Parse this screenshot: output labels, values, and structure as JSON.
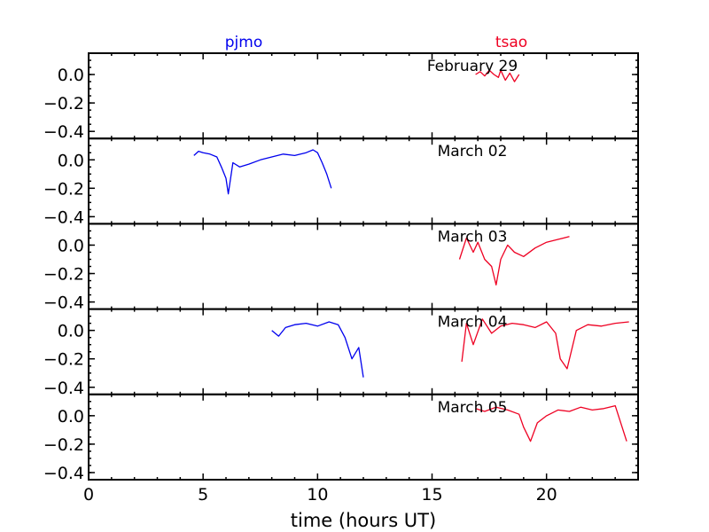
{
  "chart_data": {
    "type": "line",
    "xlabel": "time (hours UT)",
    "xlim": [
      0,
      24
    ],
    "ylim": [
      -0.45,
      0.15
    ],
    "x_ticks": [
      0,
      5,
      10,
      15,
      20
    ],
    "y_ticks": [
      0.0,
      -0.2,
      -0.4
    ],
    "x_tick_labels": [
      "0",
      "5",
      "10",
      "15",
      "20"
    ],
    "y_tick_labels": [
      "0.0",
      "−0.2",
      "−0.4"
    ],
    "legend": [
      {
        "name": "pjmo",
        "color": "#0000ee"
      },
      {
        "name": "tsao",
        "color": "#ee0022"
      }
    ],
    "panels": [
      {
        "label": "February 29",
        "series": [
          {
            "name": "tsao",
            "x": [
              16.9,
              17.1,
              17.3,
              17.5,
              17.7,
              17.9,
              18.0,
              18.2,
              18.4,
              18.6,
              18.8
            ],
            "y": [
              0.0,
              0.02,
              -0.01,
              0.03,
              0.0,
              -0.02,
              0.03,
              -0.04,
              0.01,
              -0.05,
              0.0
            ]
          }
        ]
      },
      {
        "label": "March 02",
        "series": [
          {
            "name": "pjmo",
            "x": [
              4.6,
              4.8,
              5.0,
              5.3,
              5.6,
              5.8,
              6.0,
              6.1,
              6.3,
              6.6,
              7.0,
              7.5,
              8.0,
              8.5,
              9.0,
              9.5,
              9.8,
              10.0,
              10.2,
              10.4,
              10.6
            ],
            "y": [
              0.03,
              0.06,
              0.05,
              0.04,
              0.02,
              -0.05,
              -0.13,
              -0.24,
              -0.02,
              -0.05,
              -0.03,
              0.0,
              0.02,
              0.04,
              0.03,
              0.05,
              0.07,
              0.05,
              -0.02,
              -0.1,
              -0.2
            ]
          }
        ]
      },
      {
        "label": "March 03",
        "series": [
          {
            "name": "tsao",
            "x": [
              16.2,
              16.5,
              16.8,
              17.0,
              17.3,
              17.6,
              17.8,
              18.0,
              18.3,
              18.6,
              19.0,
              19.5,
              20.0,
              20.5,
              21.0
            ],
            "y": [
              -0.1,
              0.05,
              -0.05,
              0.02,
              -0.1,
              -0.15,
              -0.28,
              -0.1,
              0.0,
              -0.05,
              -0.08,
              -0.02,
              0.02,
              0.04,
              0.06
            ]
          }
        ]
      },
      {
        "label": "March 04",
        "series": [
          {
            "name": "pjmo",
            "x": [
              8.0,
              8.3,
              8.6,
              9.0,
              9.5,
              10.0,
              10.5,
              10.9,
              11.2,
              11.5,
              11.8,
              12.0
            ],
            "y": [
              0.0,
              -0.04,
              0.02,
              0.04,
              0.05,
              0.03,
              0.06,
              0.04,
              -0.05,
              -0.2,
              -0.12,
              -0.33
            ]
          },
          {
            "name": "tsao",
            "x": [
              16.3,
              16.5,
              16.8,
              17.2,
              17.6,
              18.0,
              18.5,
              19.0,
              19.5,
              20.0,
              20.4,
              20.6,
              20.9,
              21.3,
              21.8,
              22.4,
              23.0,
              23.6
            ],
            "y": [
              -0.22,
              0.05,
              -0.1,
              0.08,
              -0.02,
              0.03,
              0.05,
              0.04,
              0.02,
              0.06,
              -0.02,
              -0.2,
              -0.27,
              0.0,
              0.04,
              0.03,
              0.05,
              0.06
            ]
          }
        ]
      },
      {
        "label": "March 05",
        "series": [
          {
            "name": "tsao",
            "x": [
              16.9,
              17.3,
              17.8,
              18.3,
              18.8,
              19.0,
              19.3,
              19.6,
              20.0,
              20.5,
              21.0,
              21.5,
              22.0,
              22.5,
              23.0,
              23.5
            ],
            "y": [
              0.05,
              0.03,
              0.06,
              0.04,
              0.01,
              -0.08,
              -0.18,
              -0.05,
              0.0,
              0.04,
              0.03,
              0.06,
              0.04,
              0.05,
              0.07,
              -0.18
            ]
          }
        ]
      }
    ]
  }
}
